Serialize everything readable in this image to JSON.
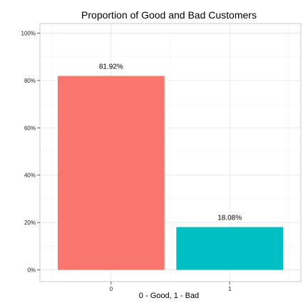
{
  "chart_data": {
    "type": "bar",
    "title": "Proportion of Good and Bad Customers",
    "xlabel": "0 - Good, 1 - Bad",
    "ylabel": "",
    "categories": [
      "0",
      "1"
    ],
    "values": [
      81.92,
      18.08
    ],
    "data_labels": [
      "81.92%",
      "18.08%"
    ],
    "ylim": [
      0,
      100
    ],
    "yticks": [
      0,
      20,
      40,
      60,
      80,
      100
    ],
    "ytick_labels": [
      "0%",
      "20%",
      "40%",
      "60%",
      "80%",
      "100%"
    ],
    "colors": [
      "#f8766d",
      "#00bfc4"
    ],
    "grid": true,
    "legend": false
  }
}
